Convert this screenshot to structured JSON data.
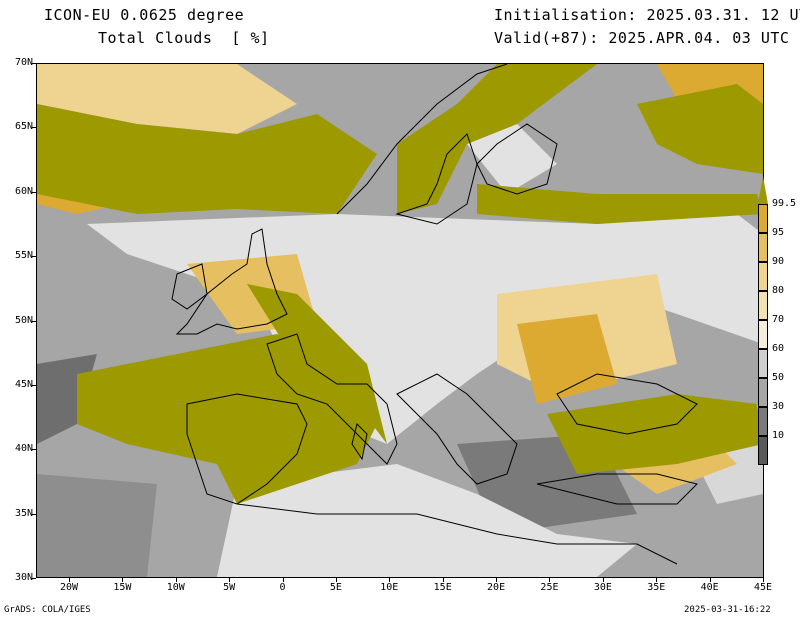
{
  "header": {
    "model": "ICON-EU 0.0625 degree",
    "field": "Total Clouds  [ %]",
    "init": "Initialisation: 2025.03.31. 12 UTC",
    "valid": "Valid(+87): 2025.APR.04. 03 UTC"
  },
  "axes": {
    "lat_labels": [
      "70N",
      "65N",
      "60N",
      "55N",
      "50N",
      "45N",
      "40N",
      "35N",
      "30N"
    ],
    "lon_labels": [
      "20W",
      "15W",
      "10W",
      "5W",
      "0",
      "5E",
      "10E",
      "15E",
      "20E",
      "25E",
      "30E",
      "35E",
      "40E",
      "45E"
    ]
  },
  "colorbar": {
    "labels": [
      "99.5",
      "95",
      "90",
      "80",
      "70",
      "60",
      "50",
      "30",
      "10"
    ],
    "colors": [
      "#9c9a00",
      "#dcaa30",
      "#e6c060",
      "#eed490",
      "#f2e2b2",
      "#f6eedc",
      "#cfcfcf",
      "#a6a6a6",
      "#7a7a7a",
      "#5a5a5a"
    ]
  },
  "map": {
    "projection": "lat-lon",
    "lon_range": [
      -23,
      45
    ],
    "lat_range": [
      30,
      70
    ],
    "colors": {
      "clear": "#e2e2e2",
      "cloud_full": "#9c9a00",
      "cloud_high": "#dcaa30",
      "cloud_mid": "#eed490",
      "thin_gray": "#a6a6a6",
      "dark_gray": "#6e6e6e",
      "coast": "#000000"
    }
  },
  "footer": {
    "left": "GrADS: COLA/IGES",
    "right": "2025-03-31-16:22"
  }
}
